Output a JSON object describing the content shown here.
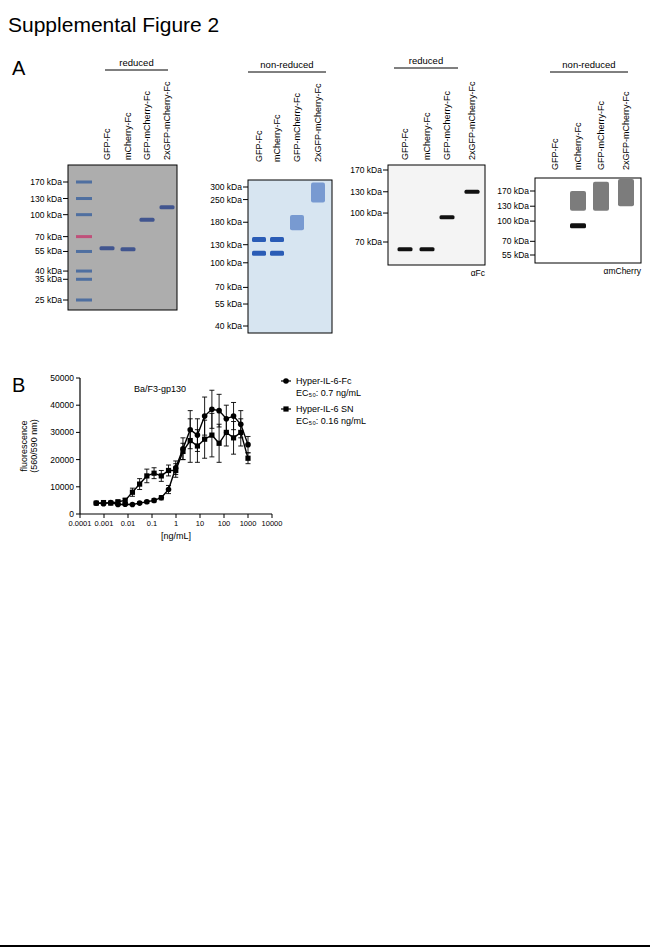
{
  "figure_title": "Supplemental Figure 2",
  "panel_labels": [
    "A",
    "B"
  ],
  "panel_a": {
    "blots": [
      {
        "condition": "reduced",
        "lanes": [
          "GFP-Fc",
          "mCherry-Fc",
          "GFP-mCherry-Fc",
          "2xGFP-mCherry-Fc"
        ],
        "markers": [
          {
            "value": 170,
            "label": "170 kDa"
          },
          {
            "value": 130,
            "label": "130 kDa"
          },
          {
            "value": 100,
            "label": "100 kDa"
          },
          {
            "value": 70,
            "label": "70 kDa"
          },
          {
            "value": 55,
            "label": "55 kDa"
          },
          {
            "value": 40,
            "label": "40 kDa"
          },
          {
            "value": 35,
            "label": "35 kDa"
          },
          {
            "value": 25,
            "label": "25 kDa"
          }
        ],
        "ladder": true,
        "bands": [
          [
            {
              "kda": 58
            }
          ],
          [
            {
              "kda": 57
            }
          ],
          [
            {
              "kda": 92
            }
          ],
          [
            {
              "kda": 113
            }
          ]
        ]
      },
      {
        "condition": "non-reduced",
        "lanes": [
          "GFP-Fc",
          "mCherry-Fc",
          "GFP-mCherry-Fc",
          "2xGFP-mCherry-Fc"
        ],
        "markers": [
          {
            "value": 300,
            "label": "300 kDa"
          },
          {
            "value": 250,
            "label": "250 kDa"
          },
          {
            "value": 180,
            "label": "180 kDa"
          },
          {
            "value": 130,
            "label": "130 kDa"
          },
          {
            "value": 100,
            "label": "100 kDa"
          },
          {
            "value": 70,
            "label": "70 kDa"
          },
          {
            "value": 55,
            "label": "55 kDa"
          },
          {
            "value": 40,
            "label": "40 kDa"
          }
        ],
        "ladder": false,
        "bands": [
          [
            {
              "kda": 115
            },
            {
              "kda": 140
            }
          ],
          [
            {
              "kda": 115
            },
            {
              "kda": 140
            }
          ],
          [
            {
              "kda": 160,
              "kda_to": 200
            }
          ],
          [
            {
              "kda": 240,
              "kda_to": 320
            }
          ]
        ]
      },
      {
        "condition": "reduced",
        "lanes": [
          "GFP-Fc",
          "mCherry-Fc",
          "GFP-mCherry-Fc",
          "2xGFP-mCherry-Fc"
        ],
        "markers": [
          {
            "value": 170,
            "label": "170 kDa"
          },
          {
            "value": 130,
            "label": "130 kDa"
          },
          {
            "value": 100,
            "label": "100 kDa"
          },
          {
            "value": 70,
            "label": "70 kDa"
          }
        ],
        "ladder": false,
        "antibody": "αFc",
        "bands": [
          [
            {
              "kda": 64
            }
          ],
          [
            {
              "kda": 64
            }
          ],
          [
            {
              "kda": 95
            }
          ],
          [
            {
              "kda": 130
            }
          ]
        ]
      },
      {
        "condition": "non-reduced",
        "lanes": [
          "GFP-Fc",
          "mCherry-Fc",
          "GFP-mCherry-Fc",
          "2xGFP-mCherry-Fc"
        ],
        "markers": [
          {
            "value": 170,
            "label": "170 kDa"
          },
          {
            "value": 130,
            "label": "130 kDa"
          },
          {
            "value": 100,
            "label": "100 kDa"
          },
          {
            "value": 70,
            "label": "70 kDa"
          },
          {
            "value": 55,
            "label": "55 kDa"
          }
        ],
        "ladder": false,
        "antibody": "αmCherry",
        "bands": [
          [],
          [
            {
              "kda": 92
            },
            {
              "kda": 120,
              "kda_to": 170
            }
          ],
          [
            {
              "kda": 120,
              "kda_to": 200
            }
          ],
          [
            {
              "kda": 130,
              "kda_to": 210
            }
          ]
        ]
      }
    ]
  },
  "chart_data": {
    "type": "line",
    "title": "Ba/F3-gp130",
    "xlabel": "[ng/mL]",
    "ylabel": [
      "fluorescence",
      "(560/590 nm)"
    ],
    "log": "x",
    "x": [
      0.000477,
      0.000954,
      0.00191,
      0.00381,
      0.00763,
      0.0153,
      0.0305,
      0.061,
      0.122,
      0.244,
      0.488,
      0.977,
      1.95,
      3.91,
      7.81,
      15.6,
      31.3,
      62.5,
      125,
      250,
      500,
      1000
    ],
    "xlim": [
      0.0001,
      10000
    ],
    "xticks": [
      0.0001,
      0.001,
      0.01,
      0.1,
      1,
      10,
      100,
      1000,
      10000
    ],
    "ylim": [
      0,
      50000
    ],
    "yticks": [
      0,
      10000,
      20000,
      30000,
      40000,
      50000
    ],
    "grid": false,
    "legend": "right",
    "series": [
      {
        "name": "Hyper-IL-6-Fc",
        "ec50_label": "EC₅₀: 0.7 ng/mL",
        "color": "#000000",
        "marker": "circle",
        "values": [
          4000,
          3800,
          4200,
          3500,
          3600,
          3500,
          4000,
          4500,
          5000,
          6000,
          9000,
          17000,
          24000,
          31000,
          29000,
          36000,
          38500,
          38000,
          35000,
          36000,
          33000,
          25500
        ],
        "errors": [
          500,
          400,
          400,
          300,
          300,
          300,
          400,
          500,
          600,
          800,
          1500,
          2500,
          4000,
          7000,
          6000,
          7000,
          7000,
          6000,
          5000,
          5000,
          5000,
          3000
        ]
      },
      {
        "name": "Hyper-IL-6 SN",
        "ec50_label": "EC₅₀: 0.16 ng/mL",
        "color": "#000000",
        "marker": "square",
        "values": [
          4000,
          4200,
          4000,
          4500,
          5000,
          8000,
          11000,
          14000,
          15000,
          14000,
          16000,
          16000,
          23000,
          27000,
          25000,
          27500,
          29000,
          26000,
          30000,
          28000,
          30000,
          20500
        ],
        "errors": [
          300,
          400,
          400,
          500,
          800,
          1500,
          2000,
          2500,
          2000,
          2000,
          2000,
          2500,
          3000,
          8000,
          6000,
          7000,
          8000,
          7000,
          5000,
          6000,
          5000,
          2000
        ]
      }
    ]
  }
}
